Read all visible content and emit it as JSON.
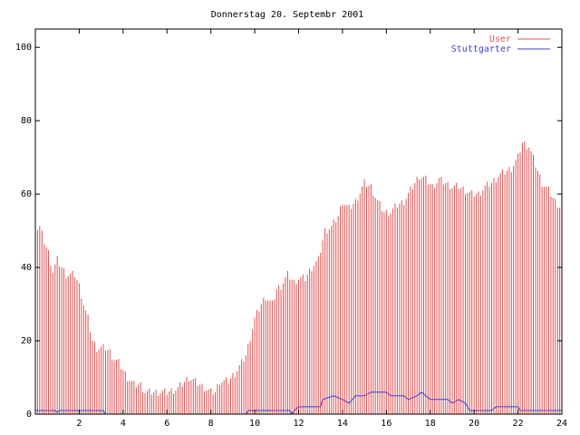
{
  "chart_data": {
    "type": "bar",
    "title": "Donnerstag 20. Septembr 2001",
    "xlabel": "",
    "ylabel": "",
    "xlim": [
      0,
      24
    ],
    "ylim": [
      0,
      105
    ],
    "x_ticks": [
      2,
      4,
      6,
      8,
      10,
      12,
      14,
      16,
      18,
      20,
      22,
      24
    ],
    "y_ticks": [
      0,
      20,
      40,
      60,
      80,
      100
    ],
    "grid": false,
    "legend_position": "top-right",
    "sample_interval_hours": 0.1,
    "series": [
      {
        "name": "User",
        "style": "impulses",
        "color": "#e05050",
        "anchors": [
          [
            0,
            50
          ],
          [
            0.2,
            51
          ],
          [
            0.4,
            47
          ],
          [
            0.6,
            44
          ],
          [
            0.8,
            39
          ],
          [
            1.0,
            42
          ],
          [
            1.2,
            40
          ],
          [
            1.4,
            38
          ],
          [
            1.8,
            38
          ],
          [
            2.0,
            35
          ],
          [
            2.2,
            30
          ],
          [
            2.4,
            26
          ],
          [
            2.6,
            20
          ],
          [
            2.8,
            18
          ],
          [
            3.2,
            18
          ],
          [
            3.4,
            17
          ],
          [
            3.6,
            15
          ],
          [
            3.8,
            14
          ],
          [
            4.0,
            12
          ],
          [
            4.2,
            10
          ],
          [
            4.5,
            8
          ],
          [
            4.8,
            8
          ],
          [
            5.0,
            6
          ],
          [
            5.5,
            6
          ],
          [
            6.0,
            6
          ],
          [
            6.5,
            7
          ],
          [
            7.0,
            10
          ],
          [
            7.5,
            8
          ],
          [
            8.0,
            6
          ],
          [
            8.2,
            6
          ],
          [
            8.4,
            9
          ],
          [
            8.8,
            9
          ],
          [
            9.2,
            12
          ],
          [
            9.6,
            16
          ],
          [
            10.0,
            26
          ],
          [
            10.3,
            30
          ],
          [
            10.5,
            32
          ],
          [
            10.8,
            30
          ],
          [
            11.0,
            34
          ],
          [
            11.2,
            35
          ],
          [
            11.5,
            38
          ],
          [
            11.8,
            36
          ],
          [
            12.0,
            37
          ],
          [
            12.3,
            37
          ],
          [
            12.6,
            40
          ],
          [
            12.9,
            42
          ],
          [
            13.2,
            50
          ],
          [
            13.5,
            51
          ],
          [
            13.8,
            54
          ],
          [
            14.0,
            58
          ],
          [
            14.3,
            56
          ],
          [
            14.6,
            58
          ],
          [
            15.0,
            63
          ],
          [
            15.3,
            62
          ],
          [
            15.6,
            58
          ],
          [
            15.9,
            55
          ],
          [
            16.2,
            55
          ],
          [
            16.5,
            57
          ],
          [
            16.8,
            58
          ],
          [
            17.2,
            62
          ],
          [
            17.5,
            65
          ],
          [
            17.8,
            64
          ],
          [
            18.1,
            62
          ],
          [
            18.4,
            64
          ],
          [
            18.7,
            63
          ],
          [
            19.0,
            62
          ],
          [
            19.3,
            62
          ],
          [
            19.6,
            61
          ],
          [
            19.9,
            60
          ],
          [
            20.2,
            60
          ],
          [
            20.5,
            62
          ],
          [
            20.8,
            63
          ],
          [
            21.1,
            65
          ],
          [
            21.4,
            66
          ],
          [
            21.7,
            67
          ],
          [
            22.0,
            70
          ],
          [
            22.2,
            74
          ],
          [
            22.5,
            73
          ],
          [
            22.8,
            68
          ],
          [
            23.1,
            63
          ],
          [
            23.4,
            61
          ],
          [
            23.7,
            58
          ],
          [
            24.0,
            56
          ]
        ]
      },
      {
        "name": "Stuttgarter",
        "style": "line",
        "color": "#4040d0",
        "anchors": [
          [
            0,
            1
          ],
          [
            0.9,
            1
          ],
          [
            1.0,
            0.5
          ],
          [
            1.1,
            1
          ],
          [
            3.1,
            1
          ],
          [
            3.2,
            0
          ],
          [
            9.6,
            0
          ],
          [
            9.7,
            1
          ],
          [
            11.6,
            1
          ],
          [
            11.7,
            0
          ],
          [
            11.8,
            1
          ],
          [
            12.0,
            2
          ],
          [
            13.0,
            2
          ],
          [
            13.1,
            4
          ],
          [
            13.6,
            5
          ],
          [
            14.0,
            4
          ],
          [
            14.3,
            3
          ],
          [
            14.6,
            5
          ],
          [
            15.0,
            5
          ],
          [
            15.3,
            6
          ],
          [
            16.0,
            6
          ],
          [
            16.2,
            5
          ],
          [
            16.8,
            5
          ],
          [
            17.0,
            4
          ],
          [
            17.4,
            5
          ],
          [
            17.6,
            6
          ],
          [
            17.8,
            5
          ],
          [
            18.0,
            4
          ],
          [
            18.8,
            4
          ],
          [
            19.0,
            3
          ],
          [
            19.3,
            4
          ],
          [
            19.6,
            3
          ],
          [
            19.8,
            1
          ],
          [
            20.8,
            1
          ],
          [
            21.0,
            2
          ],
          [
            22.0,
            2
          ],
          [
            22.1,
            1
          ],
          [
            24.0,
            1
          ]
        ]
      }
    ]
  }
}
